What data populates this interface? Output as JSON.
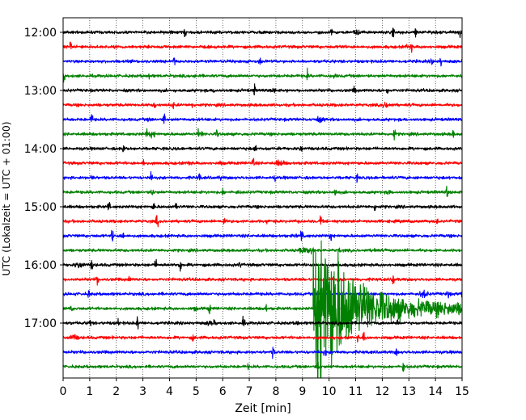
{
  "chart_data": {
    "type": "line",
    "title": "",
    "xlabel": "Zeit  [min]",
    "ylabel": "UTC (Lokalzeit = UTC + 01:00)",
    "xlim": [
      0,
      15
    ],
    "x_ticks": [
      0,
      1,
      2,
      3,
      4,
      5,
      6,
      7,
      8,
      9,
      10,
      11,
      12,
      13,
      14,
      15
    ],
    "y_ticks": [
      "12:00",
      "13:00",
      "14:00",
      "15:00",
      "16:00",
      "17:00"
    ],
    "grid": {
      "x": true,
      "y": true,
      "style": "dotted"
    },
    "minutes_per_trace": 15,
    "trace_color_cycle": [
      "#000000",
      "#ff0000",
      "#0000ff",
      "#008000"
    ],
    "traces": [
      {
        "start": "12:00",
        "color": "#000000"
      },
      {
        "start": "12:15",
        "color": "#ff0000"
      },
      {
        "start": "12:30",
        "color": "#0000ff"
      },
      {
        "start": "12:45",
        "color": "#008000"
      },
      {
        "start": "13:00",
        "color": "#000000"
      },
      {
        "start": "13:15",
        "color": "#ff0000"
      },
      {
        "start": "13:30",
        "color": "#0000ff"
      },
      {
        "start": "13:45",
        "color": "#008000"
      },
      {
        "start": "14:00",
        "color": "#000000"
      },
      {
        "start": "14:15",
        "color": "#ff0000"
      },
      {
        "start": "14:30",
        "color": "#0000ff"
      },
      {
        "start": "14:45",
        "color": "#008000"
      },
      {
        "start": "15:00",
        "color": "#000000"
      },
      {
        "start": "15:15",
        "color": "#ff0000"
      },
      {
        "start": "15:30",
        "color": "#0000ff"
      },
      {
        "start": "15:45",
        "color": "#008000"
      },
      {
        "start": "16:00",
        "color": "#000000"
      },
      {
        "start": "16:15",
        "color": "#ff0000"
      },
      {
        "start": "16:30",
        "color": "#0000ff"
      },
      {
        "start": "16:45",
        "color": "#008000"
      },
      {
        "start": "17:00",
        "color": "#000000"
      },
      {
        "start": "17:15",
        "color": "#ff0000"
      },
      {
        "start": "17:30",
        "color": "#0000ff"
      },
      {
        "start": "17:45",
        "color": "#008000"
      }
    ],
    "event": {
      "trace_start": "16:45",
      "onset_min": 9.4,
      "peak_min": 9.8,
      "coda_end_min": 15
    }
  }
}
